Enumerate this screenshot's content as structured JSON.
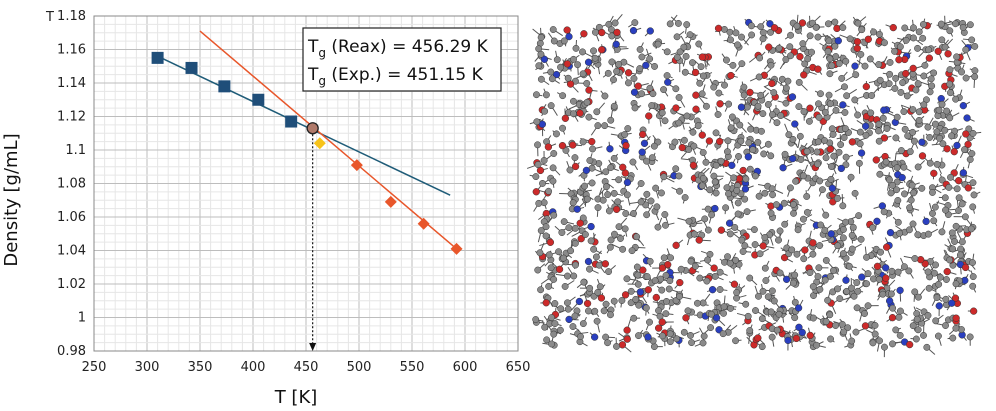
{
  "chart_data": {
    "type": "scatter",
    "title": "",
    "xlabel": "T [K]",
    "ylabel": "Density [g/mL]",
    "y_axis_corner_label": "T",
    "xlim": [
      250,
      650
    ],
    "ylim": [
      0.98,
      1.18
    ],
    "x_ticks": [
      250,
      300,
      350,
      400,
      450,
      500,
      550,
      600,
      650
    ],
    "y_ticks": [
      0.98,
      1.0,
      1.02,
      1.04,
      1.06,
      1.08,
      1.1,
      1.12,
      1.14,
      1.16,
      1.18
    ],
    "y_tick_labels": [
      "0.98",
      "1",
      "1.02",
      "1.04",
      "1.06",
      "1.08",
      "1.1",
      "1.12",
      "1.14",
      "1.16",
      "1.18"
    ],
    "grid": true,
    "series": [
      {
        "name": "",
        "marker": "square",
        "color": "#1f4e79",
        "x": [
          310,
          342,
          373,
          405,
          436
        ],
        "y": [
          1.155,
          1.149,
          1.138,
          1.13,
          1.117
        ]
      },
      {
        "name": "",
        "marker": "diamond",
        "color": "#e8562a",
        "x": [
          498,
          530,
          561,
          592
        ],
        "y": [
          1.091,
          1.069,
          1.056,
          1.041
        ]
      },
      {
        "name": "",
        "marker": "diamond",
        "color": "#f7c31a",
        "x": [
          463
        ],
        "y": [
          1.104
        ]
      }
    ],
    "fit_lines": [
      {
        "color": "#1f5c78",
        "x": [
          310,
          586
        ],
        "y": [
          1.156,
          1.073
        ]
      },
      {
        "color": "#e8562a",
        "x": [
          350,
          592
        ],
        "y": [
          1.171,
          1.041
        ]
      }
    ],
    "intersection": {
      "x": 456.29,
      "y": 1.113
    },
    "annotations": [
      {
        "prefix": "T",
        "sub": "g",
        "text": " (Reax) = 456.29 K"
      },
      {
        "prefix": "T",
        "sub": "g",
        "text": " (Exp.)  = 451.15 K"
      }
    ]
  },
  "molecule_view": {
    "atom_colors": {
      "carbon": "#8a8a8a",
      "oxygen": "#cc2a2a",
      "nitrogen": "#2a3fbf",
      "bond": "#555555"
    }
  }
}
